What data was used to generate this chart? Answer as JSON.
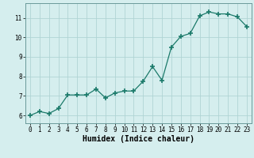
{
  "x": [
    0,
    1,
    2,
    3,
    4,
    5,
    6,
    7,
    8,
    9,
    10,
    11,
    12,
    13,
    14,
    15,
    16,
    17,
    18,
    19,
    20,
    21,
    22,
    23
  ],
  "y": [
    6.0,
    6.2,
    6.1,
    6.35,
    7.05,
    7.05,
    7.05,
    7.35,
    6.9,
    7.15,
    7.25,
    7.25,
    7.75,
    8.5,
    7.8,
    9.5,
    10.05,
    10.2,
    11.1,
    11.3,
    11.2,
    11.2,
    11.05,
    10.55
  ],
  "xlabel": "Humidex (Indice chaleur)",
  "line_color": "#1b7a6a",
  "marker_color": "#1b7a6a",
  "bg_color": "#d5eeee",
  "grid_color": "#b0d4d4",
  "xlim": [
    -0.5,
    23.5
  ],
  "ylim": [
    5.6,
    11.75
  ],
  "yticks": [
    6,
    7,
    8,
    9,
    10,
    11
  ],
  "xticks": [
    0,
    1,
    2,
    3,
    4,
    5,
    6,
    7,
    8,
    9,
    10,
    11,
    12,
    13,
    14,
    15,
    16,
    17,
    18,
    19,
    20,
    21,
    22,
    23
  ],
  "tick_labelsize": 5.5,
  "xlabel_fontsize": 7,
  "xlabel_fontweight": "bold"
}
